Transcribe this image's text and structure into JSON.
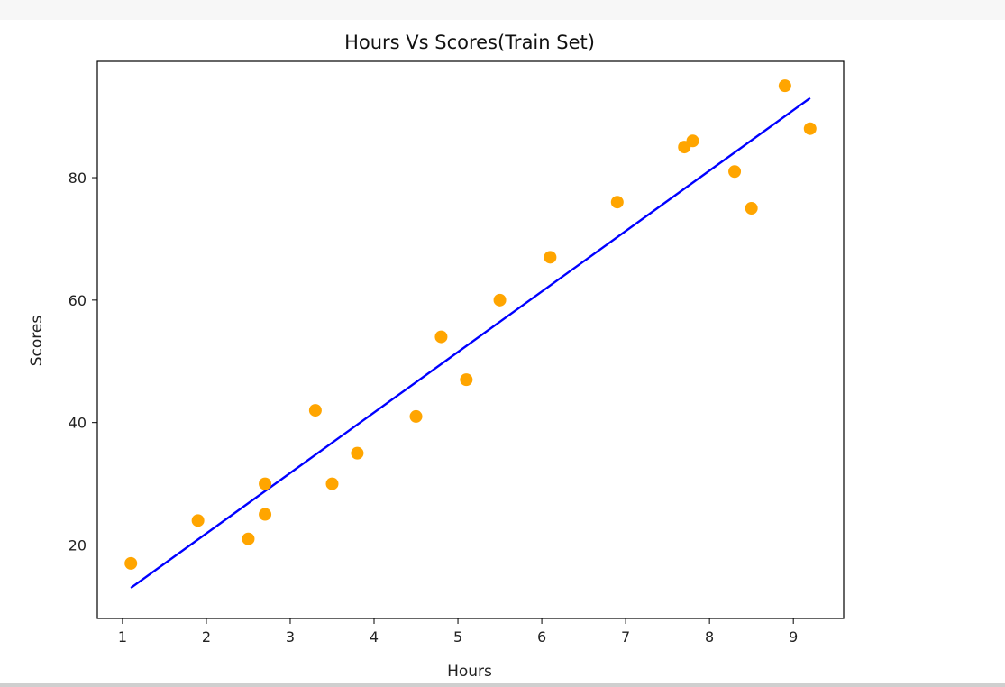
{
  "chart_data": {
    "type": "scatter",
    "title": "Hours Vs Scores(Train Set)",
    "xlabel": "Hours",
    "ylabel": "Scores",
    "xlim": [
      0.7,
      9.6
    ],
    "ylim": [
      8,
      99
    ],
    "xticks": [
      1,
      2,
      3,
      4,
      5,
      6,
      7,
      8,
      9
    ],
    "yticks": [
      20,
      40,
      60,
      80
    ],
    "grid": false,
    "legend": false,
    "points": [
      {
        "x": 1.1,
        "y": 17
      },
      {
        "x": 1.9,
        "y": 24
      },
      {
        "x": 2.5,
        "y": 21
      },
      {
        "x": 2.7,
        "y": 25
      },
      {
        "x": 2.7,
        "y": 30
      },
      {
        "x": 3.3,
        "y": 42
      },
      {
        "x": 3.5,
        "y": 30
      },
      {
        "x": 3.8,
        "y": 35
      },
      {
        "x": 4.5,
        "y": 41
      },
      {
        "x": 4.8,
        "y": 54
      },
      {
        "x": 5.1,
        "y": 47
      },
      {
        "x": 5.5,
        "y": 60
      },
      {
        "x": 6.1,
        "y": 67
      },
      {
        "x": 6.9,
        "y": 76
      },
      {
        "x": 7.7,
        "y": 85
      },
      {
        "x": 7.8,
        "y": 86
      },
      {
        "x": 8.3,
        "y": 81
      },
      {
        "x": 8.5,
        "y": 75
      },
      {
        "x": 8.9,
        "y": 95
      },
      {
        "x": 9.2,
        "y": 88
      }
    ],
    "fit_line": [
      {
        "x": 1.1,
        "y": 13
      },
      {
        "x": 9.2,
        "y": 93
      }
    ],
    "colors": {
      "points": "#ffa500",
      "line": "#0000ff",
      "axes": "#000000"
    }
  }
}
